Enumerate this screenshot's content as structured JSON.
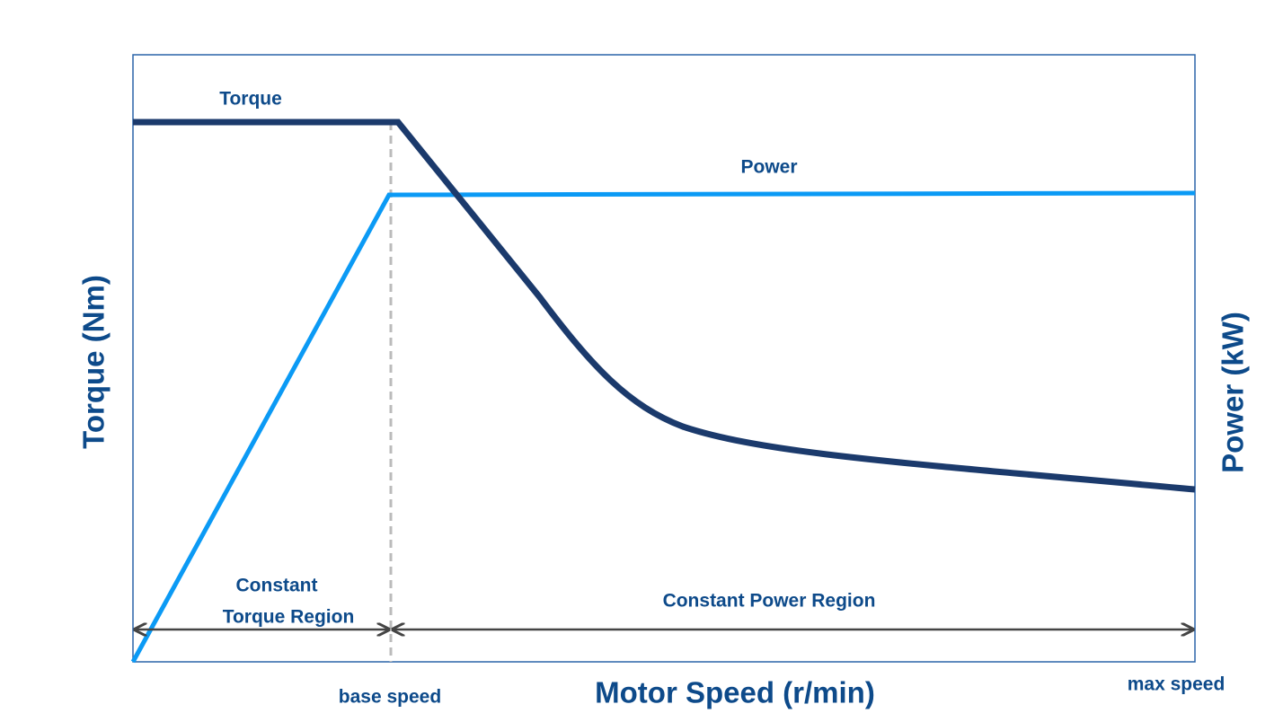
{
  "curves": {
    "torque": "Torque",
    "power": "Power"
  },
  "regions": {
    "constant_torque": [
      "Constant",
      "Torque Region"
    ],
    "constant_power": "Constant Power Region"
  },
  "axes": {
    "x_label": "Motor Speed (r/min)",
    "y_label": "Torque (Nm)",
    "y2_label": "Power (kW)",
    "base_speed": "base speed",
    "max_speed": "max speed"
  }
}
